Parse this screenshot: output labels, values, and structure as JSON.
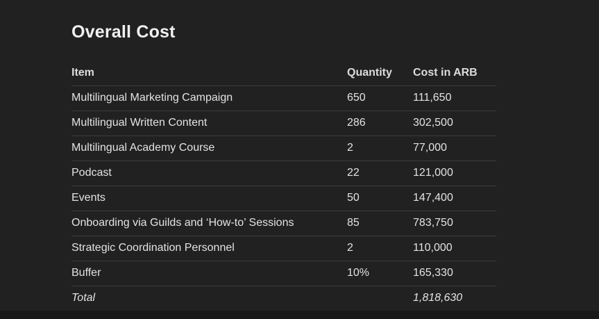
{
  "title": "Overall Cost",
  "table": {
    "headers": [
      "Item",
      "Quantity",
      "Cost in ARB"
    ],
    "rows": [
      {
        "item": "Multilingual Marketing Campaign",
        "quantity": "650",
        "cost": "111,650",
        "is_total": false
      },
      {
        "item": "Multilingual Written Content",
        "quantity": "286",
        "cost": "302,500",
        "is_total": false
      },
      {
        "item": "Multilingual Academy Course",
        "quantity": "2",
        "cost": "77,000",
        "is_total": false
      },
      {
        "item": "Podcast",
        "quantity": "22",
        "cost": "121,000",
        "is_total": false
      },
      {
        "item": "Events",
        "quantity": "50",
        "cost": "147,400",
        "is_total": false
      },
      {
        "item": "Onboarding via Guilds and ‘How-to’ Sessions",
        "quantity": "85",
        "cost": "783,750",
        "is_total": false
      },
      {
        "item": "Strategic Coordination Personnel",
        "quantity": "2",
        "cost": "110,000",
        "is_total": false
      },
      {
        "item": "Buffer",
        "quantity": "10%",
        "cost": "165,330",
        "is_total": false
      },
      {
        "item": "Total",
        "quantity": "",
        "cost": "1,818,630",
        "is_total": true
      }
    ]
  },
  "colors": {
    "background": "#212121",
    "text": "#e3e3e3",
    "heading": "#f1f1f1",
    "divider": "#3d3d3d"
  }
}
